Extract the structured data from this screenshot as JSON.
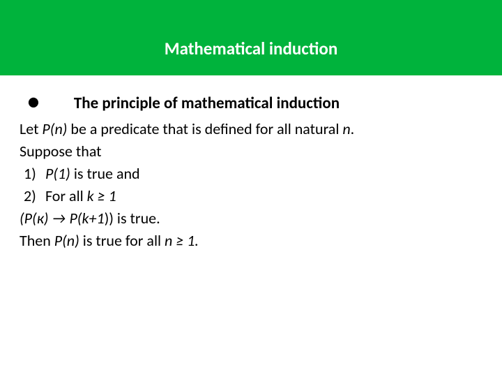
{
  "header": {
    "title": "Mathematical induction",
    "background_color": "#00b33c",
    "title_color": "#ffffff",
    "title_fontsize": 25
  },
  "content": {
    "bullet": "•",
    "heading": "The principle of mathematical induction",
    "line1_a": "Let ",
    "line1_b": "P(n)",
    "line1_c": " be a predicate that is defined for all natural ",
    "line1_d": "n",
    "line1_e": ".",
    "line2": "Suppose that",
    "item1_num": "1)",
    "item1_a": "P(1)",
    "item1_b": " is true and",
    "item2_num": "2)",
    "item2_a": "For all ",
    "item2_b": "k",
    "item2_c": "   ≥ ",
    "item2_d": "1",
    "line5_a": "(P(к) → P(k+1",
    "line5_b": ")) is true.",
    "line6_a": "Then ",
    "line6_b": "P(n)",
    "line6_c": " is true for all ",
    "line6_d": "n ≥ 1.",
    "text_color": "#000000",
    "body_fontsize": 22
  }
}
